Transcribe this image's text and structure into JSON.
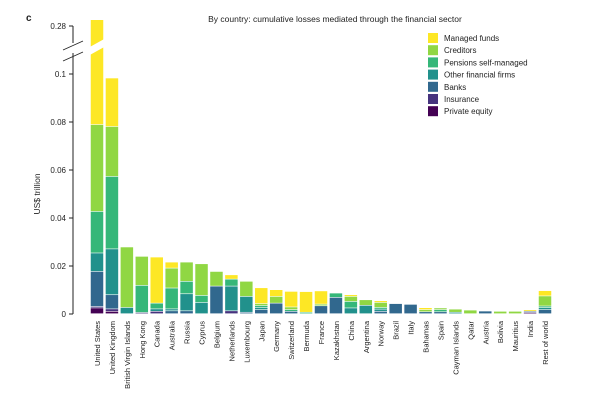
{
  "panel_label": "c",
  "chart_data": {
    "type": "bar",
    "stacked": true,
    "title": "By country: cumulative losses mediated through the financial sector",
    "ylabel": "US$ trillion",
    "xlabel": "",
    "ylim": [
      0,
      0.28
    ],
    "axis_break": [
      0.1,
      0.28
    ],
    "yticks": [
      "0",
      "0.02",
      "0.04",
      "0.06",
      "0.08",
      "0.1",
      "0.28"
    ],
    "ytick_values": [
      0,
      0.02,
      0.04,
      0.06,
      0.08,
      0.1,
      0.28
    ],
    "grid": false,
    "legend_position": "top-right",
    "categories": [
      "United States",
      "United Kingdom",
      "British Virgin Islands",
      "Hong Kong",
      "Canada",
      "Australia",
      "Russia",
      "Cyprus",
      "Belgium",
      "Netherlands",
      "Luxembourg",
      "Japan",
      "Germany",
      "Switzerland",
      "Bermuda",
      "France",
      "Kazakhstan",
      "China",
      "Argentina",
      "Norway",
      "Brazil",
      "Italy",
      "Bahamas",
      "Spain",
      "Cayman Islands",
      "Qatar",
      "Austria",
      "Bolivia",
      "Mauritius",
      "India",
      "Rest of world"
    ],
    "series": [
      {
        "name": "Private equity",
        "color": "#440154",
        "values": [
          0.0024,
          0.001,
          0,
          0,
          0,
          0,
          0,
          0,
          0,
          0,
          0,
          0,
          0,
          0,
          0,
          0,
          0,
          0,
          0,
          0,
          0,
          0,
          0,
          0,
          0,
          0,
          0,
          0,
          0,
          0.0005,
          0
        ]
      },
      {
        "name": "Insurance",
        "color": "#46337e",
        "values": [
          0.0006,
          0.001,
          0,
          0.0005,
          0.001,
          0,
          0,
          0,
          0,
          0.0012,
          0,
          0,
          0,
          0,
          0,
          0,
          0,
          0,
          0,
          0,
          0,
          0,
          0,
          0,
          0,
          0,
          0,
          0,
          0,
          0,
          0
        ]
      },
      {
        "name": "Banks",
        "color": "#31688e",
        "values": [
          0.0146,
          0.0059,
          0,
          0,
          0,
          0.0012,
          0.0012,
          0,
          0.0115,
          0,
          0.0006,
          0.0017,
          0.0044,
          0.001,
          0,
          0.0033,
          0.0068,
          0,
          0,
          0.001,
          0.0042,
          0.0039,
          0.0008,
          0.0008,
          0,
          0,
          0.0011,
          0,
          0,
          0.0005,
          0.0017
        ]
      },
      {
        "name": "Other financial firms",
        "color": "#21918c",
        "values": [
          0.0077,
          0.0191,
          0.0026,
          0,
          0.001,
          0.0008,
          0.0071,
          0.0047,
          0,
          0.0103,
          0.0066,
          0.0009,
          0,
          0,
          0,
          0,
          0,
          0.0024,
          0.0035,
          0.0009,
          0,
          0,
          0,
          0,
          0.0006,
          0,
          0,
          0,
          0,
          0,
          0.0008
        ]
      },
      {
        "name": "Pensions self-managed",
        "color": "#35b779",
        "values": [
          0.0173,
          0.0302,
          0,
          0.0113,
          0.0024,
          0.0087,
          0.0052,
          0.0029,
          0,
          0.0029,
          0,
          0.0008,
          0,
          0.0007,
          0.0006,
          0,
          0.0018,
          0.0027,
          0,
          0.0007,
          0,
          0,
          0,
          0.0009,
          0,
          0,
          0,
          0,
          0,
          0,
          0.0007
        ]
      },
      {
        "name": "Creditors",
        "color": "#90d743",
        "values": [
          0.0362,
          0.0208,
          0.0252,
          0.0121,
          0,
          0.0083,
          0.008,
          0.0132,
          0.0061,
          0,
          0.0063,
          0.0008,
          0.0028,
          0.0011,
          0,
          0.0007,
          0,
          0.0021,
          0.0023,
          0.0021,
          0,
          0,
          0.0009,
          0.0007,
          0.0013,
          0.0015,
          0,
          0.001,
          0.001,
          0,
          0.0042
        ]
      },
      {
        "name": "Managed funds",
        "color": "#fde725",
        "values": [
          0.2012,
          0.0202,
          0,
          0,
          0.0192,
          0.0025,
          0,
          0,
          0,
          0.0018,
          0,
          0.0066,
          0.0028,
          0.0065,
          0.0086,
          0.0055,
          0,
          0.0007,
          0,
          0.0007,
          0,
          0,
          0.0008,
          0,
          0,
          0,
          0,
          0,
          0,
          0.0006,
          0.0022
        ]
      }
    ]
  }
}
